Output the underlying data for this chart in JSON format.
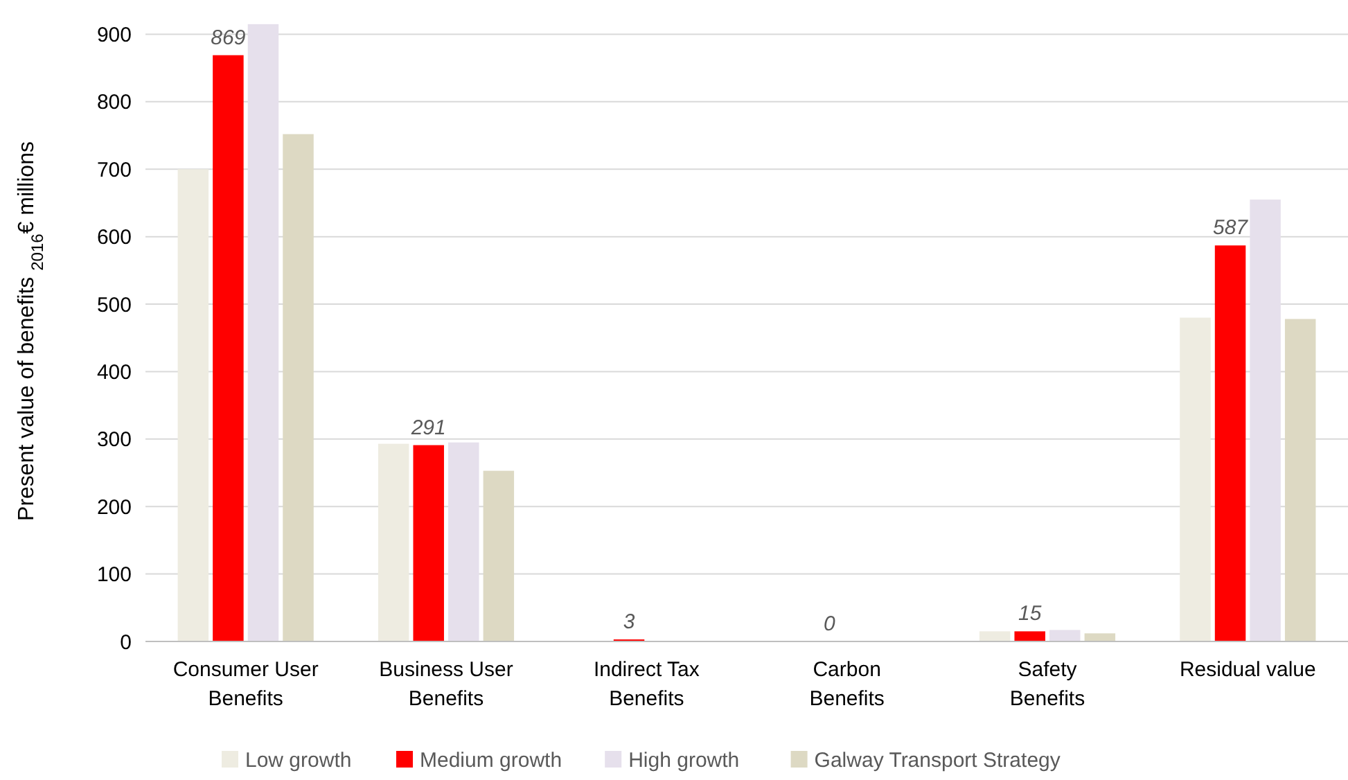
{
  "chart_data": {
    "type": "bar",
    "ylabel": "Present value of benefits $_{2016}$€ millions",
    "categories": [
      "Consumer User Benefits",
      "Business User Benefits",
      "Indirect Tax Benefits",
      "Carbon Benefits",
      "Safety Benefits",
      "Residual value"
    ],
    "series": [
      {
        "name": "Low growth",
        "color": "#eeece1",
        "values": [
          700,
          293,
          null,
          0,
          15,
          480
        ]
      },
      {
        "name": "Medium growth",
        "color": "#ff0000",
        "values": [
          869,
          291,
          3,
          0,
          15,
          587
        ],
        "value_labels": [
          "869",
          "291",
          "3",
          "0",
          "15",
          "587"
        ]
      },
      {
        "name": "High growth",
        "color": "#e6e0ec",
        "values": [
          915,
          295,
          null,
          0,
          17,
          655
        ]
      },
      {
        "name": "Galway Transport Strategy",
        "color": "#ddd9c3",
        "values": [
          752,
          253,
          null,
          0,
          12,
          478
        ]
      }
    ],
    "ylim": [
      0,
      920
    ],
    "yticks": [
      0,
      100,
      200,
      300,
      400,
      500,
      600,
      700,
      800,
      900
    ],
    "grid": "y",
    "legend": "bottom"
  }
}
